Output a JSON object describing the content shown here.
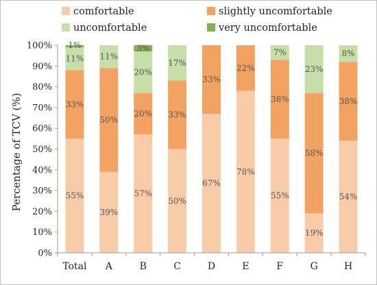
{
  "chart_data": {
    "type": "bar",
    "stacked": true,
    "title": "",
    "xlabel": "",
    "ylabel": "Percentage of TCV (%)",
    "ylim": [
      0,
      100
    ],
    "yticks": [
      "0%",
      "10%",
      "20%",
      "30%",
      "40%",
      "50%",
      "60%",
      "70%",
      "80%",
      "90%",
      "100%"
    ],
    "grid": false,
    "legend": "top",
    "categories": [
      "Total",
      "A",
      "B",
      "C",
      "D",
      "E",
      "F",
      "G",
      "H"
    ],
    "series": [
      {
        "name": "comfortable",
        "color": "#f8cba9",
        "values": [
          55,
          39,
          57,
          50,
          67,
          78,
          55,
          19,
          54
        ],
        "labels": [
          "55%",
          "39%",
          "57%",
          "50%",
          "67%",
          "78%",
          "55%",
          "19%",
          "54%"
        ]
      },
      {
        "name": "slightly uncomfortable",
        "color": "#f4a261",
        "values": [
          33,
          50,
          20,
          33,
          33,
          22,
          38,
          58,
          38
        ],
        "labels": [
          "33%",
          "50%",
          "20%",
          "33%",
          "33%",
          "22%",
          "38%",
          "58%",
          "38%"
        ]
      },
      {
        "name": "uncomfortable",
        "color": "#c6dea8",
        "values": [
          11,
          11,
          20,
          17,
          0,
          0,
          7,
          23,
          8
        ],
        "labels": [
          "11%",
          "11%",
          "20%",
          "17%",
          "",
          "",
          "7%",
          "23%",
          "8%"
        ]
      },
      {
        "name": "very uncomfortable",
        "color": "#7fb34f",
        "values": [
          1,
          0,
          3,
          0,
          0,
          0,
          0,
          0,
          0
        ],
        "labels": [
          "1%",
          "",
          "3%",
          "",
          "",
          "",
          "",
          "",
          ""
        ]
      }
    ]
  }
}
